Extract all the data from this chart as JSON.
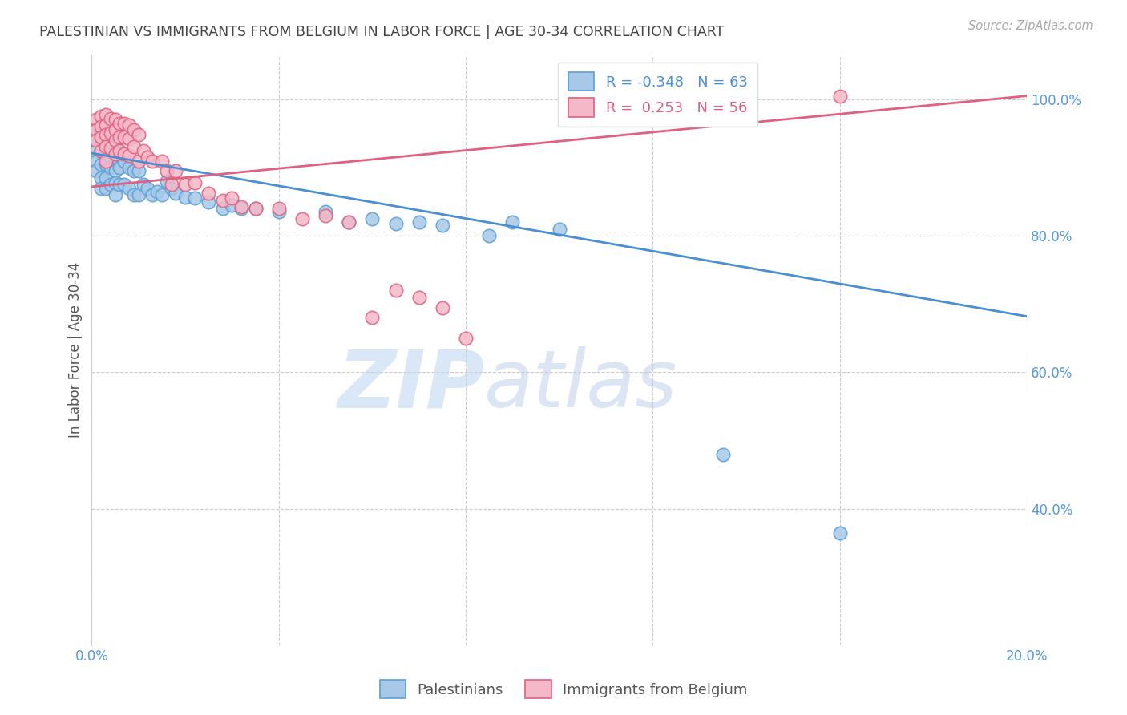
{
  "title": "PALESTINIAN VS IMMIGRANTS FROM BELGIUM IN LABOR FORCE | AGE 30-34 CORRELATION CHART",
  "source": "Source: ZipAtlas.com",
  "ylabel": "In Labor Force | Age 30-34",
  "xlabel": "",
  "xlim": [
    0.0,
    0.2
  ],
  "ylim": [
    0.2,
    1.065
  ],
  "yticks": [
    0.4,
    0.6,
    0.8,
    1.0
  ],
  "ytick_labels": [
    "40.0%",
    "60.0%",
    "80.0%",
    "100.0%"
  ],
  "xticks": [
    0.0,
    0.04,
    0.08,
    0.12,
    0.16,
    0.2
  ],
  "xtick_labels": [
    "0.0%",
    "",
    "",
    "",
    "",
    "20.0%"
  ],
  "legend_labels": [
    "Palestinians",
    "Immigrants from Belgium"
  ],
  "blue_R": -0.348,
  "blue_N": 63,
  "pink_R": 0.253,
  "pink_N": 56,
  "blue_color": "#a8c8e8",
  "pink_color": "#f4b8c8",
  "blue_edge_color": "#5a9fd4",
  "pink_edge_color": "#e06080",
  "blue_line_color": "#4a8fd4",
  "pink_line_color": "#e06080",
  "watermark_zip": "ZIP",
  "watermark_atlas": "atlas",
  "background_color": "#ffffff",
  "grid_color": "#cccccc",
  "title_color": "#444444",
  "axis_label_color": "#555555",
  "tick_color": "#5599dd",
  "blue_trend": [
    0.921,
    0.682
  ],
  "pink_trend": [
    0.872,
    1.005
  ],
  "blue_scatter_x": [
    0.001,
    0.001,
    0.001,
    0.001,
    0.001,
    0.002,
    0.002,
    0.002,
    0.002,
    0.002,
    0.002,
    0.003,
    0.003,
    0.003,
    0.003,
    0.003,
    0.004,
    0.004,
    0.004,
    0.004,
    0.005,
    0.005,
    0.005,
    0.005,
    0.005,
    0.006,
    0.006,
    0.006,
    0.007,
    0.007,
    0.008,
    0.008,
    0.009,
    0.009,
    0.01,
    0.01,
    0.011,
    0.012,
    0.013,
    0.014,
    0.015,
    0.016,
    0.017,
    0.018,
    0.02,
    0.022,
    0.025,
    0.028,
    0.03,
    0.032,
    0.035,
    0.04,
    0.05,
    0.055,
    0.06,
    0.065,
    0.07,
    0.075,
    0.085,
    0.09,
    0.1,
    0.135,
    0.16
  ],
  "blue_scatter_y": [
    0.955,
    0.94,
    0.925,
    0.91,
    0.895,
    0.955,
    0.94,
    0.925,
    0.905,
    0.885,
    0.87,
    0.94,
    0.92,
    0.905,
    0.885,
    0.87,
    0.935,
    0.915,
    0.9,
    0.875,
    0.93,
    0.915,
    0.895,
    0.878,
    0.86,
    0.92,
    0.9,
    0.875,
    0.91,
    0.875,
    0.9,
    0.87,
    0.895,
    0.86,
    0.895,
    0.86,
    0.875,
    0.87,
    0.86,
    0.865,
    0.86,
    0.88,
    0.87,
    0.862,
    0.856,
    0.855,
    0.85,
    0.84,
    0.845,
    0.84,
    0.84,
    0.835,
    0.835,
    0.82,
    0.825,
    0.818,
    0.82,
    0.815,
    0.8,
    0.82,
    0.81,
    0.48,
    0.365
  ],
  "pink_scatter_x": [
    0.001,
    0.001,
    0.001,
    0.002,
    0.002,
    0.002,
    0.002,
    0.003,
    0.003,
    0.003,
    0.003,
    0.003,
    0.004,
    0.004,
    0.004,
    0.005,
    0.005,
    0.005,
    0.005,
    0.006,
    0.006,
    0.006,
    0.007,
    0.007,
    0.007,
    0.008,
    0.008,
    0.008,
    0.009,
    0.009,
    0.01,
    0.01,
    0.011,
    0.012,
    0.013,
    0.015,
    0.016,
    0.017,
    0.018,
    0.02,
    0.022,
    0.025,
    0.028,
    0.03,
    0.032,
    0.035,
    0.04,
    0.045,
    0.05,
    0.055,
    0.06,
    0.065,
    0.07,
    0.075,
    0.08,
    0.16
  ],
  "pink_scatter_y": [
    0.97,
    0.955,
    0.94,
    0.975,
    0.96,
    0.945,
    0.925,
    0.978,
    0.962,
    0.948,
    0.93,
    0.91,
    0.972,
    0.95,
    0.928,
    0.97,
    0.955,
    0.94,
    0.92,
    0.965,
    0.945,
    0.925,
    0.965,
    0.945,
    0.92,
    0.962,
    0.942,
    0.918,
    0.955,
    0.93,
    0.948,
    0.91,
    0.925,
    0.915,
    0.91,
    0.91,
    0.895,
    0.875,
    0.895,
    0.875,
    0.878,
    0.862,
    0.852,
    0.855,
    0.842,
    0.84,
    0.84,
    0.825,
    0.83,
    0.82,
    0.68,
    0.72,
    0.71,
    0.695,
    0.65,
    1.005
  ]
}
